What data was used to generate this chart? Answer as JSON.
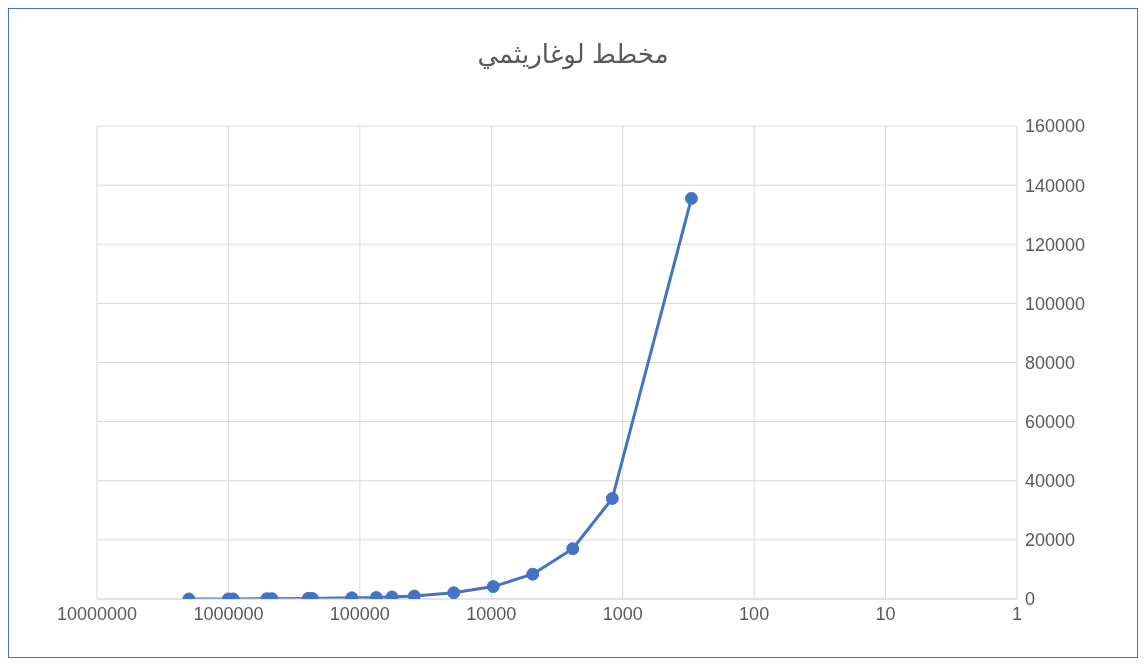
{
  "chart_data": {
    "type": "line",
    "title": "مخطط لوغاريثمي",
    "x": [
      2000000,
      1000000,
      920000,
      510000,
      467000,
      247000,
      230000,
      115000,
      75000,
      57000,
      38500,
      19300,
      9660,
      4840,
      2400,
      1200,
      300
    ],
    "series": [
      {
        "color": "#4472c4",
        "values": [
          0,
          0,
          0,
          100,
          100,
          200,
          200,
          400,
          500,
          700,
          1000,
          2100,
          4200,
          8400,
          17000,
          34000,
          135500
        ]
      }
    ],
    "xlim": [
      10000000,
      1
    ],
    "xticks": [
      10000000,
      1000000,
      100000,
      10000,
      1000,
      100,
      10,
      1
    ],
    "ylim": [
      0,
      160000
    ],
    "yticks": [
      0,
      20000,
      40000,
      60000,
      80000,
      100000,
      120000,
      140000,
      160000
    ],
    "log": "x",
    "grid": true,
    "marker": "circle",
    "line_style": "solid"
  }
}
